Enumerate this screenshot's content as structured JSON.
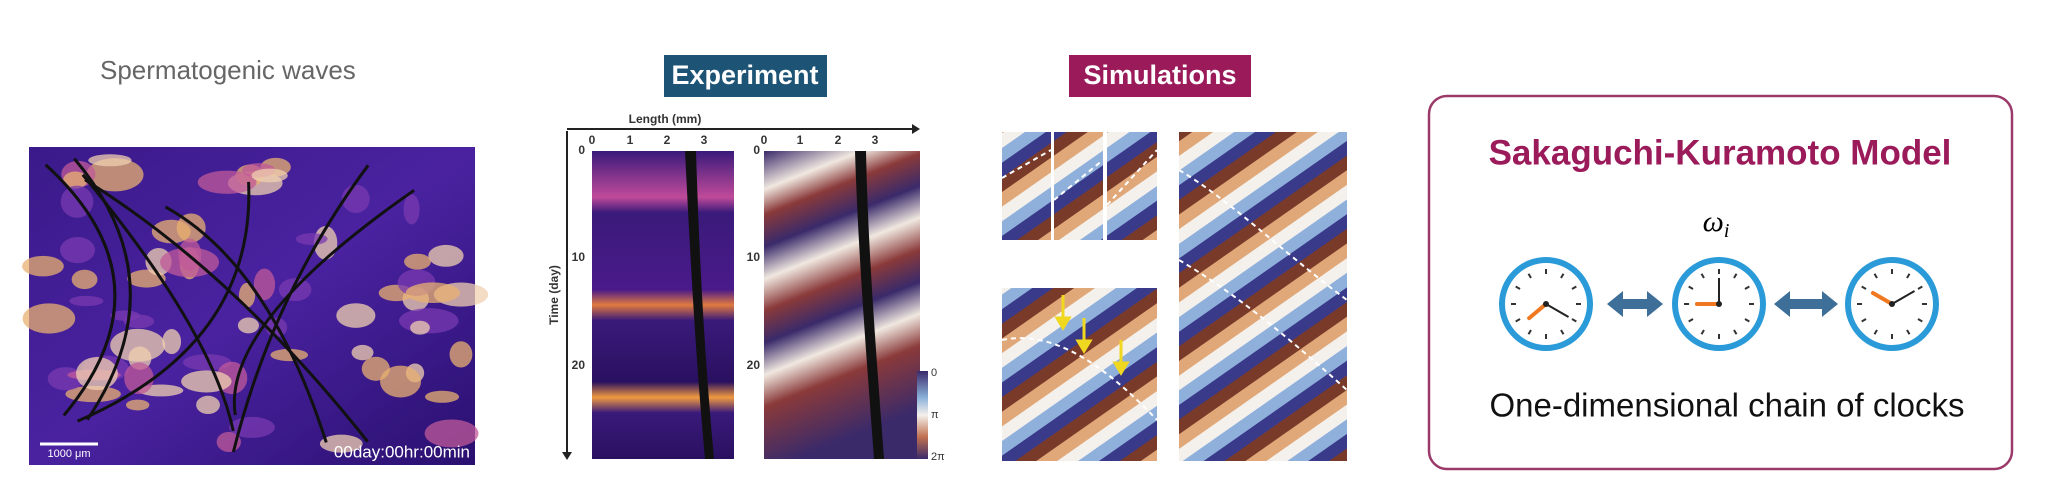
{
  "left_panel": {
    "title": "Spermatogenic waves",
    "scale_bar": "1000 μm",
    "timestamp": "00day:00hr:00min"
  },
  "experiment": {
    "label": "Experiment",
    "x_axis_label": "Length (mm)",
    "x_ticks": [
      "0",
      "1",
      "2",
      "3"
    ],
    "y_axis_label": "Time (day)",
    "y_ticks": [
      "0",
      "10",
      "20"
    ],
    "colorbar_ticks": [
      "0",
      "π",
      "2π"
    ]
  },
  "simulations": {
    "label": "Simulations"
  },
  "model": {
    "title": "Sakaguchi-Kuramoto Model",
    "symbol": "ω",
    "subscript": "i",
    "caption": "One-dimensional chain of clocks"
  }
}
